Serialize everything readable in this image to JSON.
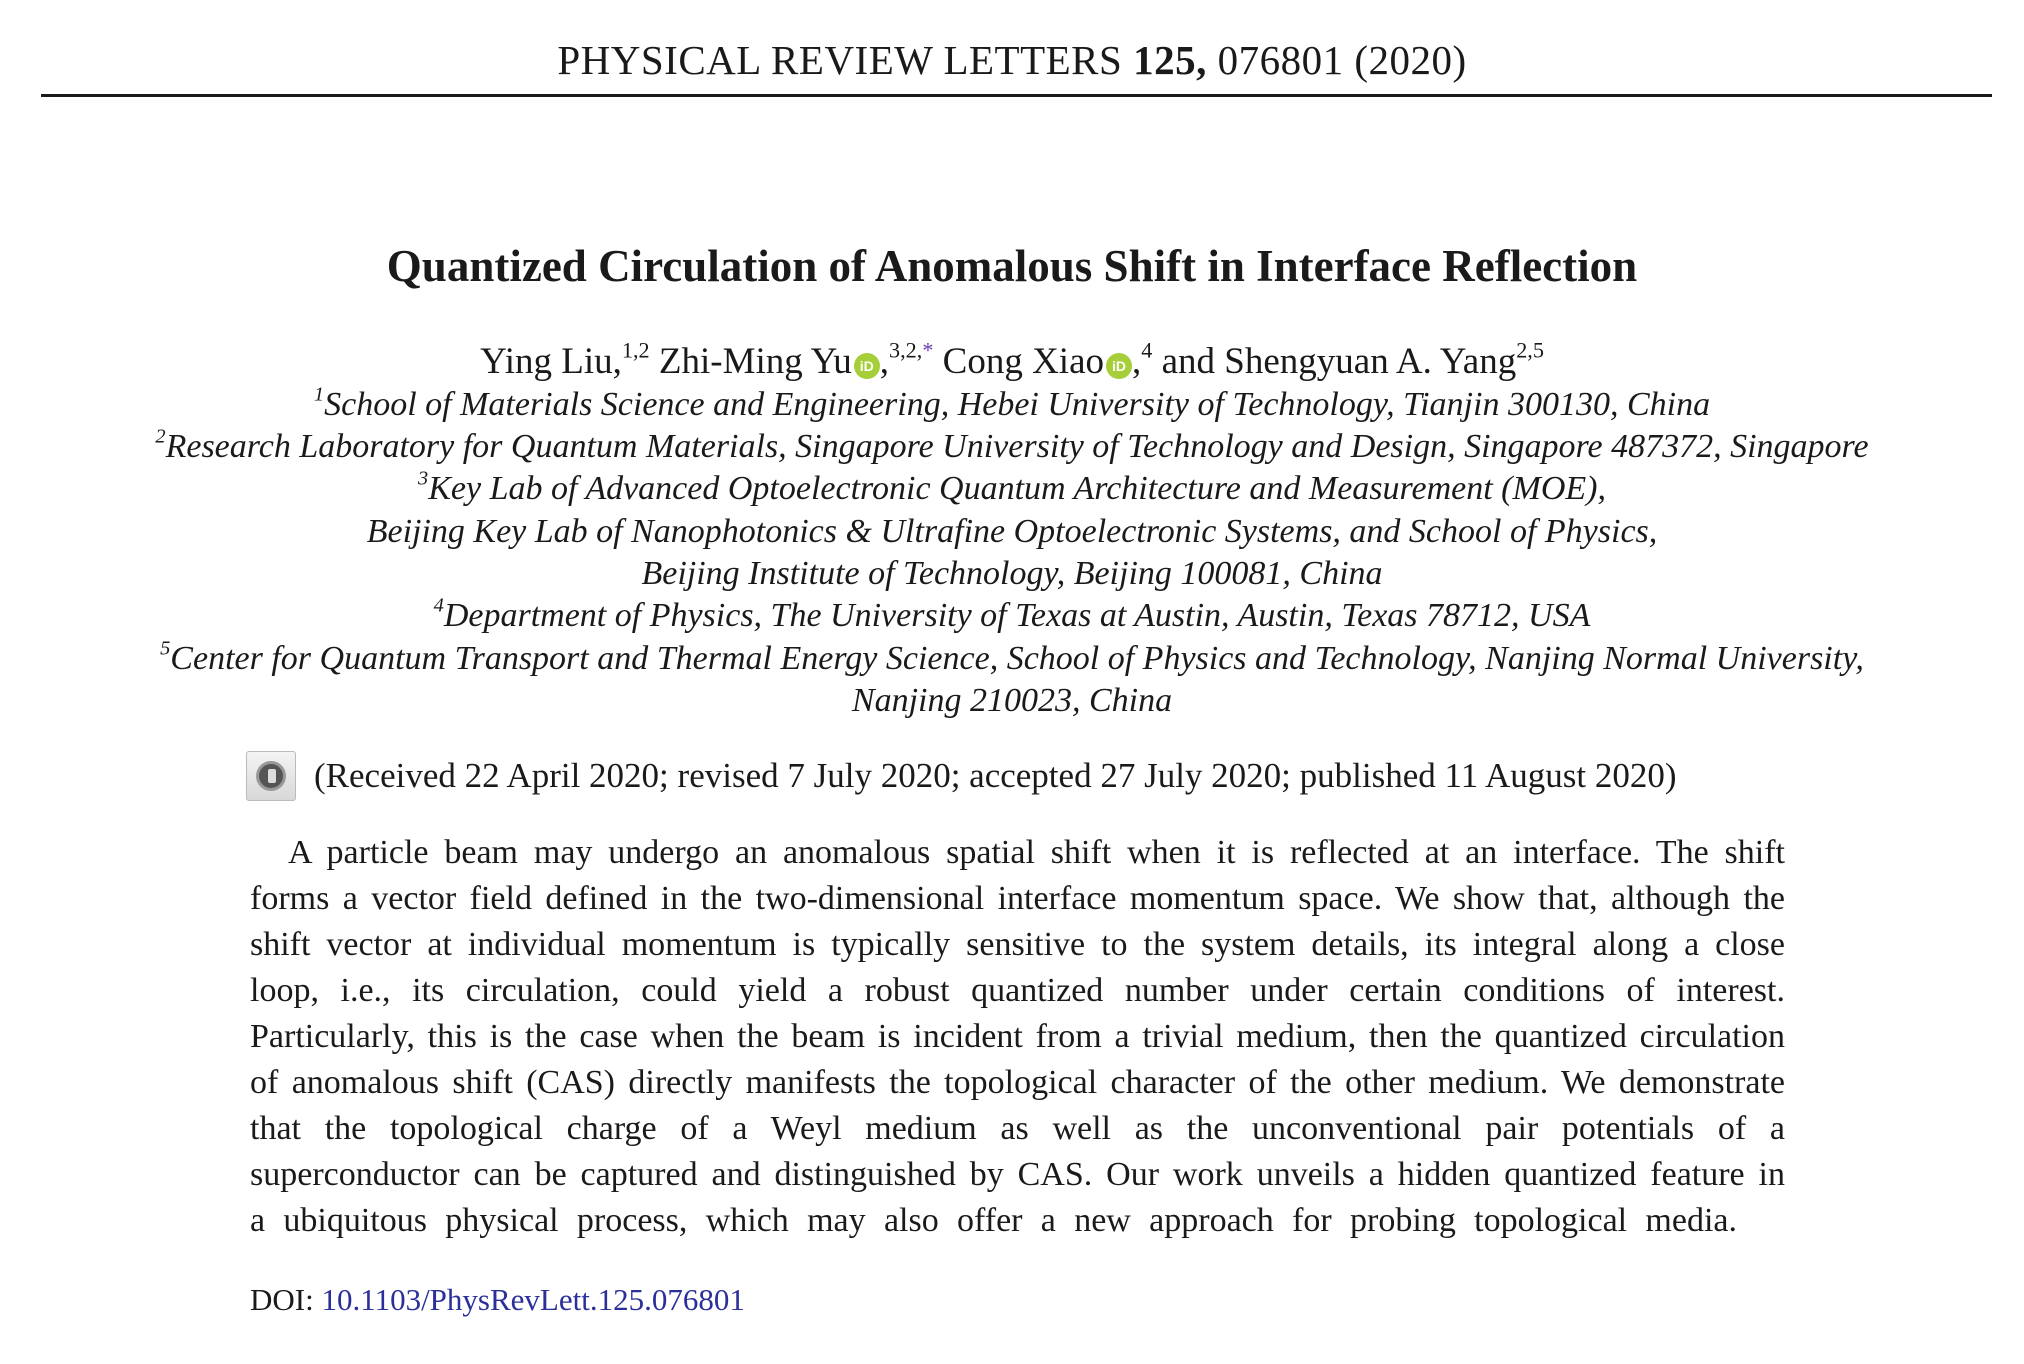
{
  "header": {
    "journal": "PHYSICAL REVIEW LETTERS",
    "volume": "125,",
    "article": "076801 (2020)"
  },
  "title": "Quantized Circulation of Anomalous Shift in Interface Reflection",
  "authors": [
    {
      "name": "Ying Liu,",
      "sup": "1,2",
      "orcid": false
    },
    {
      "name": "Zhi-Ming Yu",
      "sup": "3,2,",
      "star": "*",
      "orcid": true
    },
    {
      "name": "Cong Xiao",
      "sup": "4",
      "orcid": true
    },
    {
      "name": "and Shengyuan A. Yang",
      "sup": "2,5",
      "orcid": false
    }
  ],
  "orcid_label": "iD",
  "affiliations": [
    {
      "sup": "1",
      "text": "School of Materials Science and Engineering, Hebei University of Technology, Tianjin 300130, China"
    },
    {
      "sup": "2",
      "text": "Research Laboratory for Quantum Materials, Singapore University of Technology and Design, Singapore 487372, Singapore"
    },
    {
      "sup": "3",
      "text": "Key Lab of Advanced Optoelectronic Quantum Architecture and Measurement (MOE),"
    },
    {
      "sup": "",
      "text": "Beijing Key Lab of Nanophotonics & Ultrafine Optoelectronic Systems, and School of Physics,"
    },
    {
      "sup": "",
      "text": "Beijing Institute of Technology, Beijing 100081, China"
    },
    {
      "sup": "4",
      "text": "Department of Physics, The University of Texas at Austin, Austin, Texas 78712, USA"
    },
    {
      "sup": "5",
      "text": "Center for Quantum Transport and Thermal Energy Science, School of Physics and Technology, Nanjing Normal University,"
    },
    {
      "sup": "",
      "text": "Nanjing 210023, China"
    }
  ],
  "received": "(Received 22 April 2020; revised 7 July 2020; accepted 27 July 2020; published 11 August 2020)",
  "abstract_lines": [
    "A particle beam may undergo an anomalous spatial shift when it is reflected at an interface. The shift",
    "forms a vector field defined in the two-dimensional interface momentum space. We show that, although the",
    "shift vector at individual momentum is typically sensitive to the system details, its integral along a close",
    "loop, i.e., its circulation, could yield a robust quantized number under certain conditions of interest.",
    "Particularly, this is the case when the beam is incident from a trivial medium, then the quantized circulation",
    "of anomalous shift (CAS) directly manifests the topological character of the other medium. We demonstrate",
    "that the topological charge of a Weyl medium as well as the unconventional pair potentials of a",
    "superconductor can be captured and distinguished by CAS. Our work unveils a hidden quantized feature in",
    "a ubiquitous physical process, which may also offer a new approach for probing topological media."
  ],
  "doi": {
    "label": "DOI:",
    "value": "10.1103/PhysRevLett.125.076801"
  },
  "colors": {
    "orcid": "#a6ce39",
    "link": "#2b2f9a",
    "text": "#1a1a1a"
  }
}
